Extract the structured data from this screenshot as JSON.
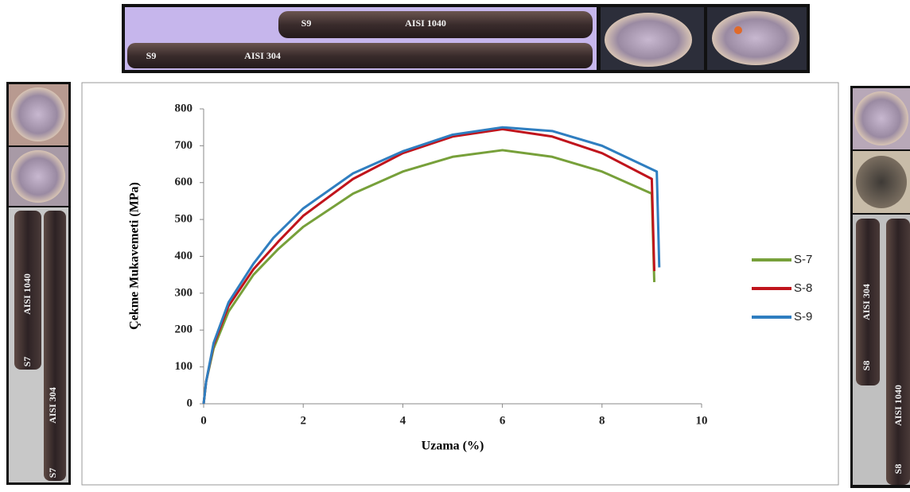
{
  "photos": {
    "top": [
      {
        "text": "S9",
        "x": 385,
        "y": 30
      },
      {
        "text": "AISI 1040",
        "x": 535,
        "y": 30
      },
      {
        "text": "S9",
        "x": 190,
        "y": 71
      },
      {
        "text": "AISI 304",
        "x": 330,
        "y": 71
      }
    ],
    "left": [
      {
        "text": "AISI 1040",
        "x": 35,
        "y": 370
      },
      {
        "text": "S7",
        "x": 35,
        "y": 455
      },
      {
        "text": "AISI 304",
        "x": 67,
        "y": 510
      },
      {
        "text": "S7",
        "x": 67,
        "y": 595
      }
    ],
    "right": [
      {
        "text": "AISI 304",
        "x": 1090,
        "y": 380
      },
      {
        "text": "S8",
        "x": 1090,
        "y": 460
      },
      {
        "text": "AISI 1040",
        "x": 1130,
        "y": 510
      },
      {
        "text": "S8",
        "x": 1130,
        "y": 590
      }
    ]
  },
  "chart_data": {
    "type": "line",
    "x_label": "Uzama (%)",
    "y_label": "Çekme Mukavemeti (MPa)",
    "xlim": [
      0,
      10
    ],
    "xticks": [
      0,
      2,
      4,
      6,
      8,
      10
    ],
    "ylim": [
      0,
      800
    ],
    "yticks": [
      0,
      100,
      200,
      300,
      400,
      500,
      600,
      700,
      800
    ],
    "grid": false,
    "legend": "right",
    "series": [
      {
        "name": "S-7",
        "color": "#77a03a",
        "x": [
          0,
          0.05,
          0.2,
          0.5,
          1,
          1.5,
          2,
          3,
          4,
          5,
          6,
          7,
          8,
          9,
          9.05
        ],
        "values": [
          0,
          60,
          150,
          250,
          350,
          420,
          480,
          570,
          630,
          670,
          688,
          670,
          630,
          570,
          330
        ]
      },
      {
        "name": "S-8",
        "color": "#c0141c",
        "x": [
          0,
          0.05,
          0.2,
          0.5,
          1,
          1.5,
          2,
          3,
          4,
          5,
          6,
          7,
          8,
          9,
          9.05
        ],
        "values": [
          0,
          60,
          160,
          265,
          365,
          440,
          510,
          610,
          680,
          725,
          745,
          725,
          680,
          610,
          360
        ]
      },
      {
        "name": "S-9",
        "color": "#2f7ec0",
        "x": [
          0,
          0.05,
          0.2,
          0.5,
          1,
          1.4,
          2,
          3,
          4,
          5,
          6,
          7,
          8,
          9.1,
          9.15
        ],
        "values": [
          0,
          60,
          165,
          275,
          380,
          450,
          530,
          625,
          685,
          730,
          750,
          740,
          700,
          630,
          370
        ]
      }
    ]
  }
}
